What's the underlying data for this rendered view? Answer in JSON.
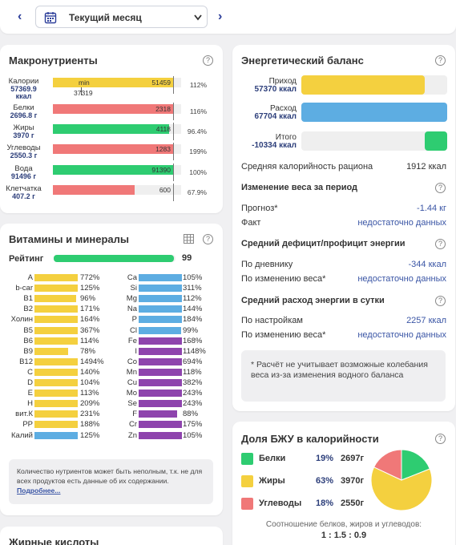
{
  "period": {
    "label": "Текущий месяц",
    "prev_icon": "chevron-left-icon",
    "next_icon": "chevron-right-icon",
    "calendar_icon": "calendar-icon",
    "dropdown_icon": "chevron-down-icon"
  },
  "colors": {
    "yellow": "#f4d03f",
    "red": "#f07878",
    "green": "#2ecc71",
    "blue": "#5dade2",
    "purple": "#8e44ad",
    "accent": "#3a55a5"
  },
  "macro": {
    "title": "Макронутриенты",
    "help": "?",
    "rows": [
      {
        "name": "Калории",
        "value": "57369.9",
        "unit": "ккал",
        "bar_value": "51459",
        "extra_top": "min",
        "extra_below": "37319",
        "percent": "112%",
        "color": "yellow",
        "fill": 1.0
      },
      {
        "name": "Белки",
        "value": "2696.8 г",
        "bar_value": "2318",
        "percent": "116%",
        "color": "red",
        "fill": 1.0
      },
      {
        "name": "Жиры",
        "value": "3970 г",
        "bar_value": "4118",
        "percent": "96.4%",
        "color": "green",
        "fill": 0.964
      },
      {
        "name": "Углеводы",
        "value": "2550.3 г",
        "bar_value": "1283",
        "percent": "199%",
        "color": "red",
        "fill": 1.0
      },
      {
        "name": "Вода",
        "value": "91496 г",
        "bar_value": "91390",
        "percent": "100%",
        "color": "green",
        "fill": 1.0
      },
      {
        "name": "Клетчатка",
        "value": "407.2 г",
        "bar_value": "600",
        "percent": "67.9%",
        "color": "red",
        "fill": 0.679
      }
    ]
  },
  "vitamins": {
    "title": "Витамины и минералы",
    "help": "?",
    "table_icon": "table-icon",
    "rating_label": "Рейтинг",
    "rating_value": "99",
    "rating_fill": 0.99,
    "left": [
      {
        "name": "A",
        "percent": "772%",
        "color": "yellow",
        "fill": 1.0
      },
      {
        "name": "b-car",
        "percent": "125%",
        "color": "yellow",
        "fill": 1.0
      },
      {
        "name": "B1",
        "percent": "96%",
        "color": "yellow",
        "fill": 0.96
      },
      {
        "name": "B2",
        "percent": "171%",
        "color": "yellow",
        "fill": 1.0
      },
      {
        "name": "Холин",
        "percent": "164%",
        "color": "yellow",
        "fill": 1.0
      },
      {
        "name": "B5",
        "percent": "367%",
        "color": "yellow",
        "fill": 1.0
      },
      {
        "name": "B6",
        "percent": "114%",
        "color": "yellow",
        "fill": 1.0
      },
      {
        "name": "B9",
        "percent": "78%",
        "color": "yellow",
        "fill": 0.78
      },
      {
        "name": "B12",
        "percent": "1494%",
        "color": "yellow",
        "fill": 1.0
      },
      {
        "name": "C",
        "percent": "140%",
        "color": "yellow",
        "fill": 1.0
      },
      {
        "name": "D",
        "percent": "104%",
        "color": "yellow",
        "fill": 1.0
      },
      {
        "name": "E",
        "percent": "113%",
        "color": "yellow",
        "fill": 1.0
      },
      {
        "name": "H",
        "percent": "209%",
        "color": "yellow",
        "fill": 1.0
      },
      {
        "name": "вит.К",
        "percent": "231%",
        "color": "yellow",
        "fill": 1.0
      },
      {
        "name": "PP",
        "percent": "188%",
        "color": "yellow",
        "fill": 1.0
      },
      {
        "name": "Калий",
        "percent": "125%",
        "color": "blue",
        "fill": 1.0
      }
    ],
    "right": [
      {
        "name": "Ca",
        "percent": "105%",
        "color": "blue",
        "fill": 1.0
      },
      {
        "name": "Si",
        "percent": "311%",
        "color": "blue",
        "fill": 1.0
      },
      {
        "name": "Mg",
        "percent": "112%",
        "color": "blue",
        "fill": 1.0
      },
      {
        "name": "Na",
        "percent": "144%",
        "color": "blue",
        "fill": 1.0
      },
      {
        "name": "P",
        "percent": "184%",
        "color": "blue",
        "fill": 1.0
      },
      {
        "name": "Cl",
        "percent": "99%",
        "color": "blue",
        "fill": 0.99
      },
      {
        "name": "Fe",
        "percent": "168%",
        "color": "purple",
        "fill": 1.0
      },
      {
        "name": "I",
        "percent": "1148%",
        "color": "purple",
        "fill": 1.0
      },
      {
        "name": "Co",
        "percent": "694%",
        "color": "purple",
        "fill": 1.0
      },
      {
        "name": "Mn",
        "percent": "118%",
        "color": "purple",
        "fill": 1.0
      },
      {
        "name": "Cu",
        "percent": "382%",
        "color": "purple",
        "fill": 1.0
      },
      {
        "name": "Mo",
        "percent": "243%",
        "color": "purple",
        "fill": 1.0
      },
      {
        "name": "Se",
        "percent": "243%",
        "color": "purple",
        "fill": 1.0
      },
      {
        "name": "F",
        "percent": "88%",
        "color": "purple",
        "fill": 0.88
      },
      {
        "name": "Cr",
        "percent": "175%",
        "color": "purple",
        "fill": 1.0
      },
      {
        "name": "Zn",
        "percent": "105%",
        "color": "purple",
        "fill": 1.0
      }
    ],
    "note": "Количество нутриентов может быть неполным, т.к. не для всех продуктов есть данные об их содержании.",
    "note_link": "Подробнее..."
  },
  "fatty": {
    "title": "Жирные кислоты"
  },
  "energy": {
    "title": "Энергетический баланс",
    "help": "?",
    "rows": [
      {
        "label": "Приход",
        "value": "57370 ккал",
        "color": "yellow",
        "fill": 0.848
      },
      {
        "label": "Расход",
        "value": "67704 ккал",
        "color": "blue",
        "fill": 1.0
      },
      {
        "label": "Итого",
        "value": "-10334 ккал",
        "color": "green",
        "fill": 0.153
      }
    ],
    "avg_label": "Средняя калорийность рациона",
    "avg_value": "1912 ккал",
    "weight": {
      "title": "Изменение веса за период",
      "rows": [
        {
          "label": "Прогноз*",
          "value": "-1.44 кг"
        },
        {
          "label": "Факт",
          "value": "недостаточно данных"
        }
      ]
    },
    "deficit": {
      "title": "Средний дефицит/профицит энергии",
      "rows": [
        {
          "label": "По дневнику",
          "value": "-344 ккал"
        },
        {
          "label": "По изменению веса*",
          "value": "недостаточно данных"
        }
      ]
    },
    "expense": {
      "title": "Средний расход энергии в сутки",
      "rows": [
        {
          "label": "По настройкам",
          "value": "2257 ккал"
        },
        {
          "label": "По изменению веса*",
          "value": "недостаточно данных"
        }
      ]
    },
    "note": "* Расчёт не учитывает возможные колебания веса из-за изменения водного баланса"
  },
  "bju": {
    "title": "Доля БЖУ в калорийности",
    "help": "?",
    "items": [
      {
        "name": "Белки",
        "percent": "19%",
        "grams": "2697г",
        "color": "green",
        "share": 19
      },
      {
        "name": "Жиры",
        "percent": "63%",
        "grams": "3970г",
        "color": "yellow",
        "share": 63
      },
      {
        "name": "Углеводы",
        "percent": "18%",
        "grams": "2550г",
        "color": "red",
        "share": 18
      }
    ],
    "ratio_label": "Соотношение белков, жиров и углеводов:",
    "ratio_value": "1 : 1.5 : 0.9"
  },
  "chart_data": {
    "type": "pie",
    "categories": [
      "Белки",
      "Жиры",
      "Углеводы"
    ],
    "values": [
      19,
      63,
      18
    ]
  }
}
